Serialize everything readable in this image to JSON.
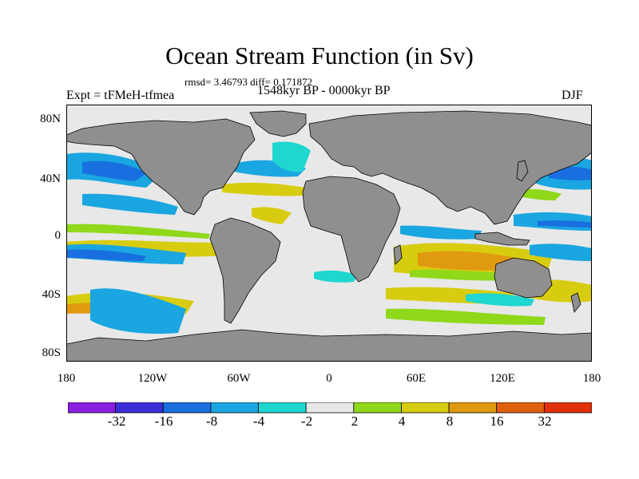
{
  "title": "Ocean Stream Function (in Sv)",
  "stats": "rmsd= 3.46793 diff= 0.171872",
  "experiment": "Expt = tFMeH-tfmea",
  "period": "1548kyr BP - 0000kyr BP",
  "season": "DJF",
  "lat_labels": [
    "80N",
    "40N",
    "0",
    "40S",
    "80S"
  ],
  "lon_labels": [
    "180",
    "120W",
    "60W",
    "0",
    "60E",
    "120E",
    "180"
  ],
  "colorbar": {
    "labels": [
      "-32",
      "-16",
      "-8",
      "-4",
      "-2",
      "2",
      "4",
      "8",
      "16",
      "32"
    ],
    "colors": [
      "#8a1fe0",
      "#3a2fd8",
      "#1a6fe0",
      "#1aa6e0",
      "#1fd6d0",
      "#e8e8e8",
      "#8fd81a",
      "#d8cc10",
      "#e09a10",
      "#e0600f",
      "#e0300a"
    ]
  },
  "colors": {
    "land": "#8f8f8f",
    "ocean_neutral": "#e8e8e8",
    "coast": "#000000"
  }
}
